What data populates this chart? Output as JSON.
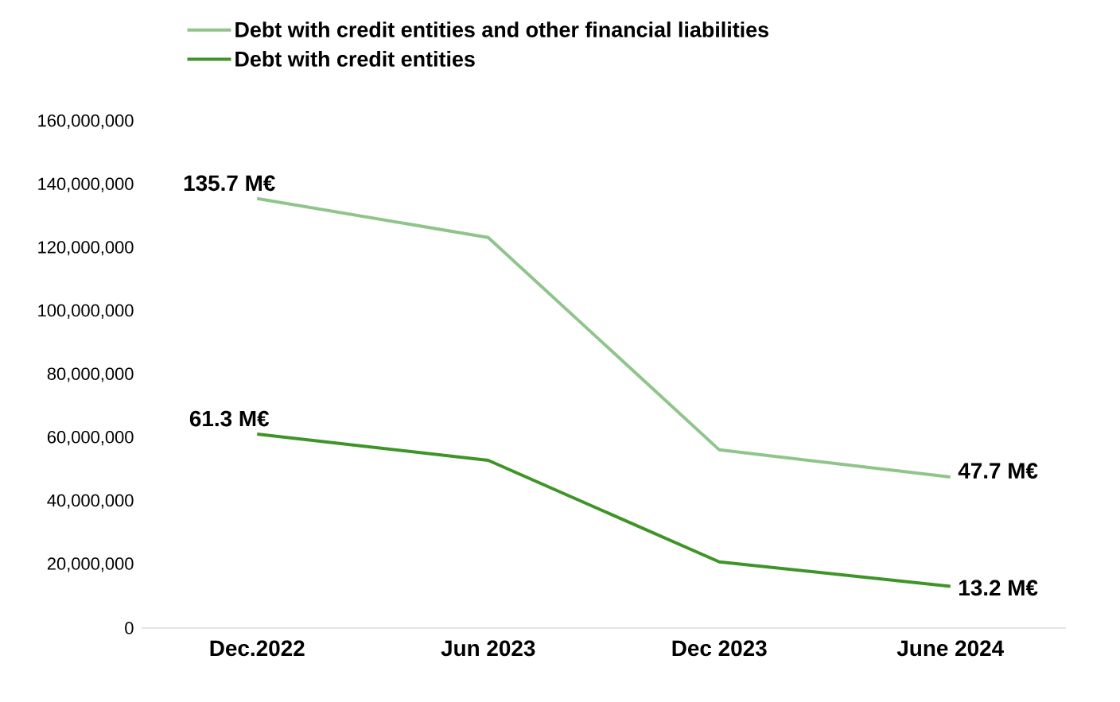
{
  "chart_data": {
    "type": "line",
    "categories": [
      "Dec.2022",
      "Jun 2023",
      "Dec 2023",
      "June 2024"
    ],
    "series": [
      {
        "name": "Debt with credit entities and other financial liabilities",
        "color": "#8fc58a",
        "values": [
          135700000,
          123400000,
          56300000,
          47700000
        ],
        "value_labels": [
          "135.7 M€",
          null,
          null,
          "47.7 M€"
        ]
      },
      {
        "name": "Debt with credit entities",
        "color": "#3f9428",
        "values": [
          61300000,
          53000000,
          20900000,
          13200000
        ],
        "value_labels": [
          "61.3 M€",
          null,
          null,
          "13.2 M€"
        ]
      }
    ],
    "ylim": [
      0,
      160000000
    ],
    "yticks": [
      0,
      {
        "value": 20000000,
        "label": "20,000,000"
      },
      {
        "value": 40000000,
        "label": "40,000,000"
      },
      {
        "value": 60000000,
        "label": "60,000,000"
      },
      {
        "value": 80000000,
        "label": "80,000,000"
      },
      {
        "value": 100000000,
        "label": "100,000,000"
      },
      {
        "value": 120000000,
        "label": "120,000,000"
      },
      {
        "value": 140000000,
        "label": "140,000,000"
      },
      {
        "value": 160000000,
        "label": "160,000,000"
      }
    ],
    "legend": "top left",
    "grid": false,
    "marker": "none",
    "line_style": "solid"
  }
}
